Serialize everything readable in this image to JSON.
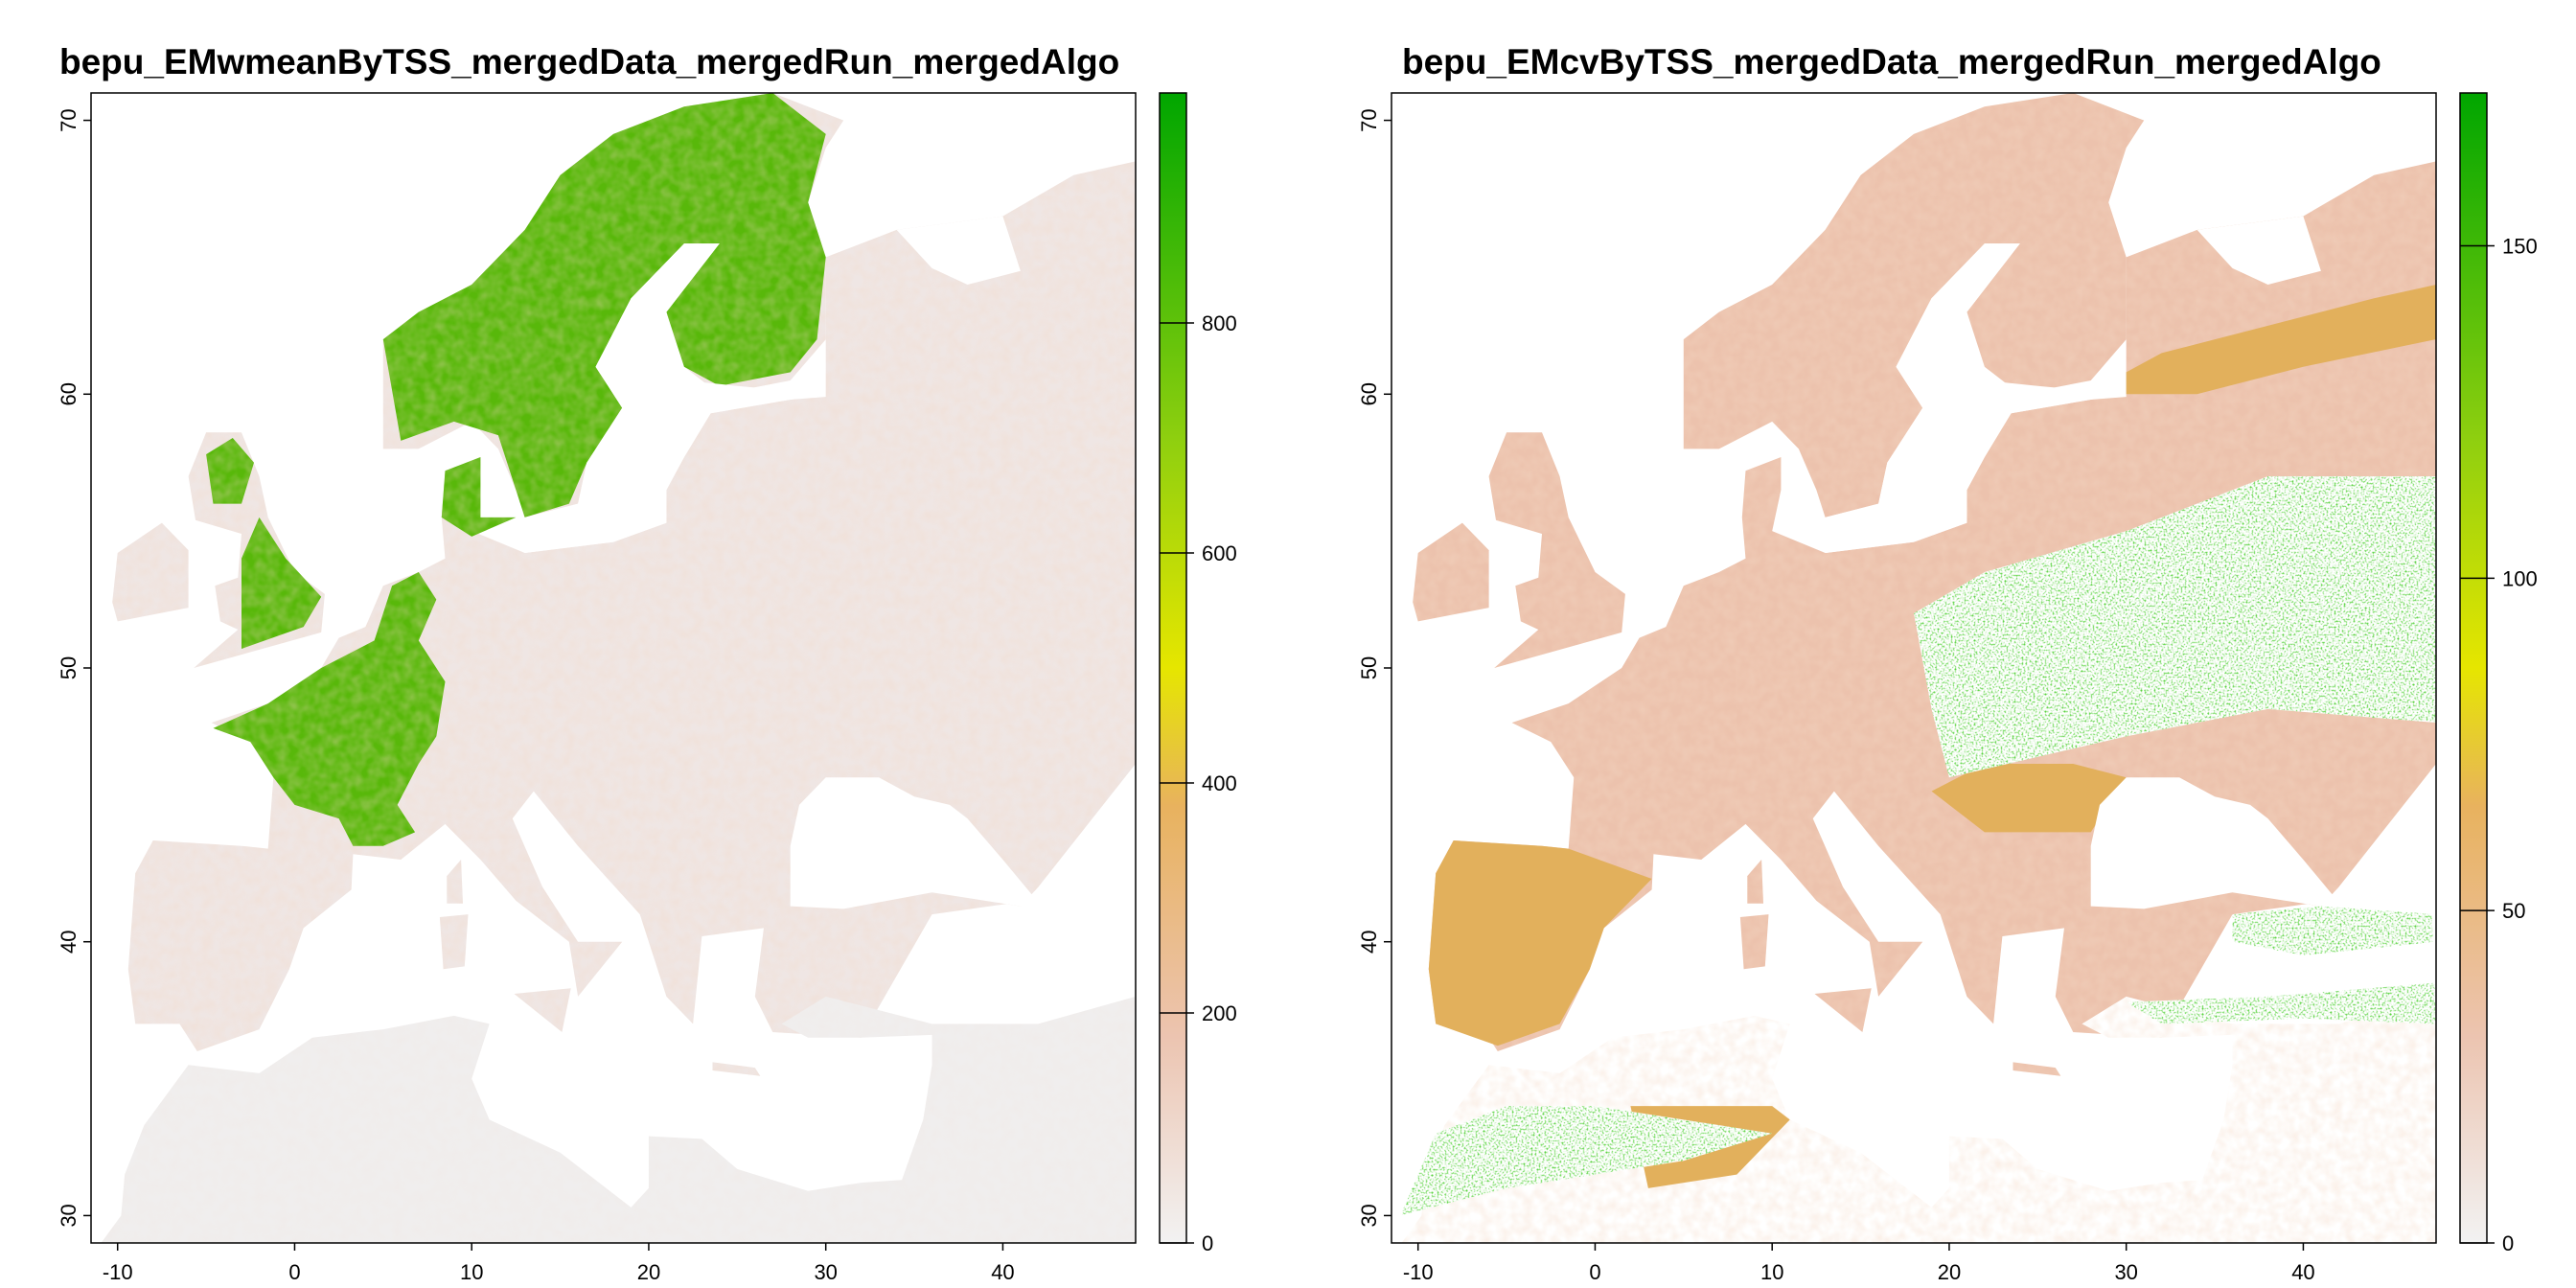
{
  "chart_data": [
    {
      "type": "heatmap",
      "title": "bepu_EMwmeanByTSS_mergedData_mergedRun_mergedAlgo",
      "x_ticks": [
        -10,
        0,
        10,
        20,
        30,
        40
      ],
      "y_ticks": [
        30,
        40,
        50,
        60,
        70
      ],
      "xlim": [
        -11.5,
        47.5
      ],
      "ylim": [
        29,
        71
      ],
      "legend": {
        "range": [
          0,
          1000
        ],
        "ticks": [
          0,
          200,
          400,
          600,
          800
        ],
        "placement": "right"
      }
    },
    {
      "type": "heatmap",
      "title": "bepu_EMcvByTSS_mergedData_mergedRun_mergedAlgo",
      "x_ticks": [
        -10,
        0,
        10,
        20,
        30,
        40
      ],
      "y_ticks": [
        30,
        40,
        50,
        60,
        70
      ],
      "xlim": [
        -11.5,
        47.5
      ],
      "ylim": [
        29,
        71
      ],
      "legend": {
        "range": [
          0,
          173
        ],
        "ticks": [
          0,
          50,
          100,
          150
        ],
        "placement": "right"
      }
    }
  ],
  "colors": {
    "scale": [
      "#f2f2f2",
      "#ecc4b0",
      "#e8b25e",
      "#e6e600",
      "#8ecf0f",
      "#00a600"
    ],
    "background_ocean": "#ffffff",
    "low_value_land": "#f0eeee"
  }
}
